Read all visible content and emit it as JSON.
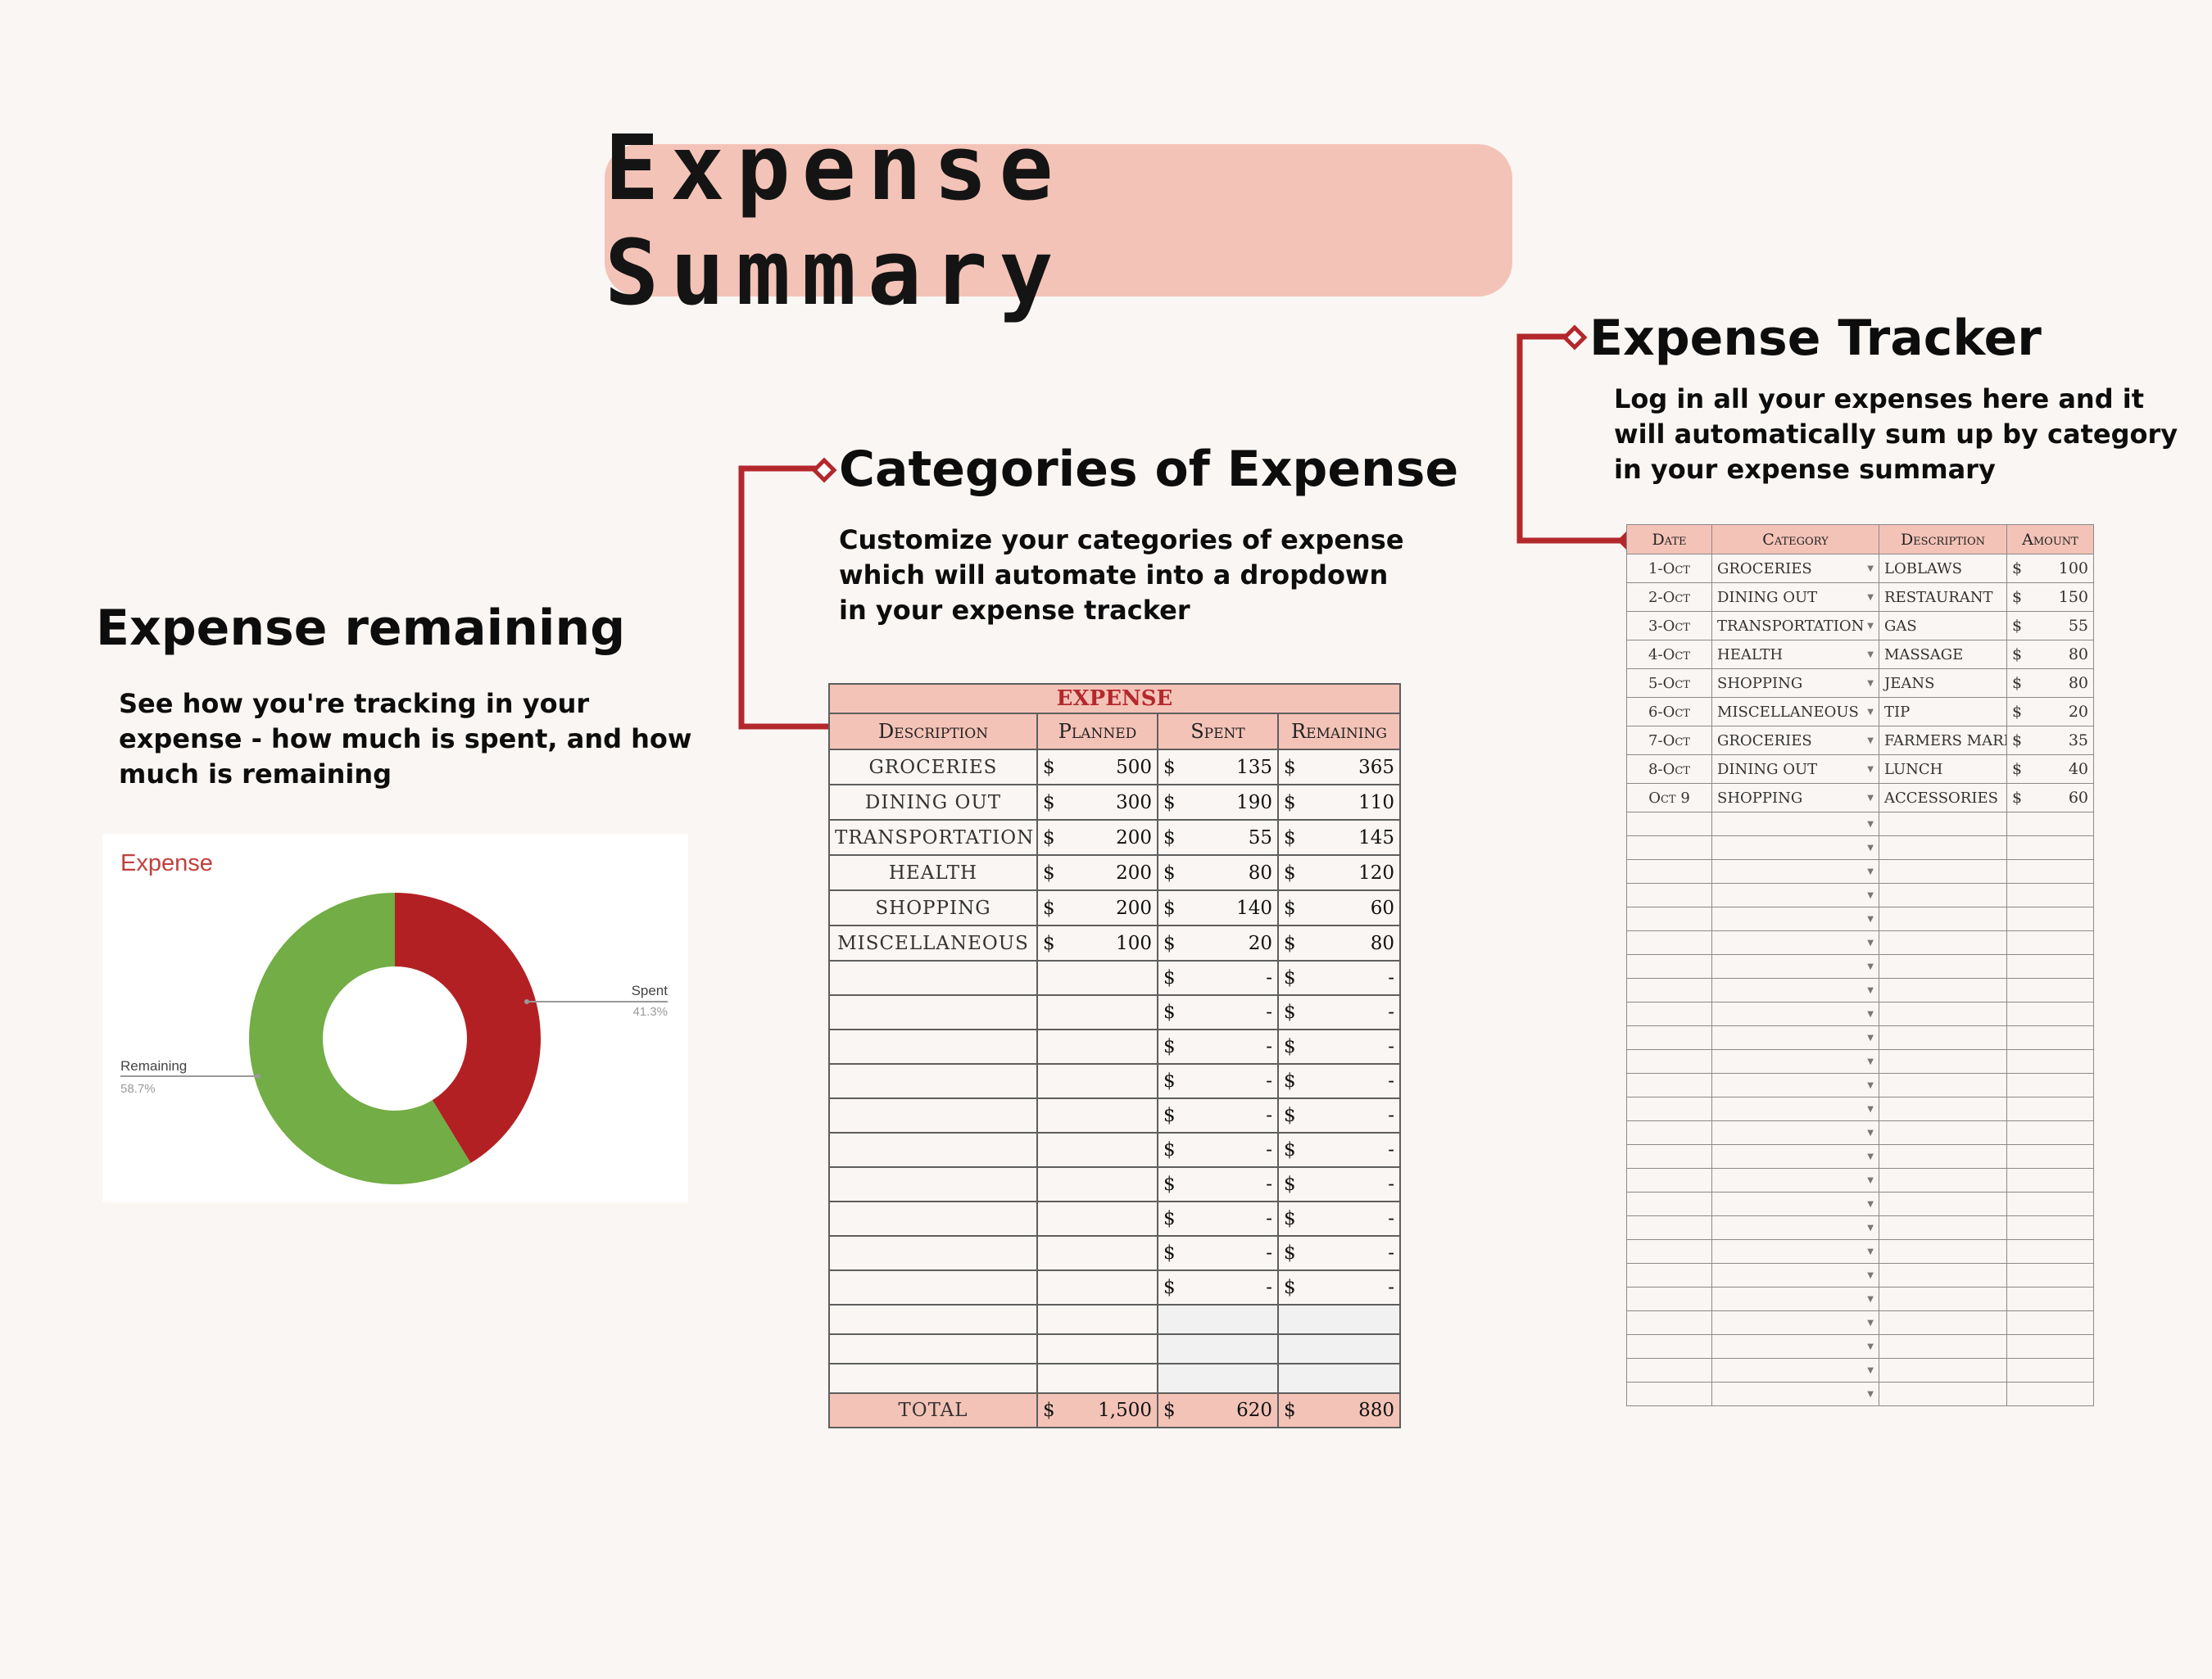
{
  "banner": {
    "title": "Expense Summary"
  },
  "sections": {
    "remaining": {
      "heading": "Expense remaining",
      "lines": [
        "See how you're tracking in your",
        "expense - how much is spent, and how",
        "much is remaining"
      ]
    },
    "categories": {
      "heading": "Categories of Expense",
      "lines": [
        "Customize your categories of expense",
        "which will automate into a dropdown",
        "in your expense tracker"
      ]
    },
    "tracker": {
      "heading": "Expense Tracker",
      "lines": [
        "Log in all your expenses here and it",
        "will automatically sum up by category",
        "in your expense summary"
      ]
    }
  },
  "donut": {
    "title": "Expense",
    "slices": [
      {
        "name": "Spent",
        "pct_label": "41.3%",
        "value": 41.3,
        "color": "#b32024"
      },
      {
        "name": "Remaining",
        "pct_label": "58.7%",
        "value": 58.7,
        "color": "#72ad45"
      }
    ]
  },
  "expense_table": {
    "caption": "EXPENSE",
    "headers": [
      "Description",
      "Planned",
      "Spent",
      "Remaining"
    ],
    "currency": "$",
    "dash": "-",
    "rows": [
      {
        "desc": "GROCERIES",
        "planned": "500",
        "spent": "135",
        "remaining": "365"
      },
      {
        "desc": "DINING OUT",
        "planned": "300",
        "spent": "190",
        "remaining": "110"
      },
      {
        "desc": "TRANSPORTATION",
        "planned": "200",
        "spent": "55",
        "remaining": "145"
      },
      {
        "desc": "HEALTH",
        "planned": "200",
        "spent": "80",
        "remaining": "120"
      },
      {
        "desc": "SHOPPING",
        "planned": "200",
        "spent": "140",
        "remaining": "60"
      },
      {
        "desc": "MISCELLANEOUS",
        "planned": "100",
        "spent": "20",
        "remaining": "80"
      }
    ],
    "total": {
      "label": "TOTAL",
      "planned": "1,500",
      "spent": "620",
      "remaining": "880"
    }
  },
  "tracker_table": {
    "headers": [
      "Date",
      "Category",
      "Description",
      "Amount"
    ],
    "currency": "$",
    "rows": [
      {
        "date": "1-Oct",
        "category": "GROCERIES",
        "description": "LOBLAWS",
        "amount": "100"
      },
      {
        "date": "2-Oct",
        "category": "DINING OUT",
        "description": "RESTAURANT",
        "amount": "150"
      },
      {
        "date": "3-Oct",
        "category": "TRANSPORTATION",
        "description": "GAS",
        "amount": "55"
      },
      {
        "date": "4-Oct",
        "category": "HEALTH",
        "description": "MASSAGE",
        "amount": "80"
      },
      {
        "date": "5-Oct",
        "category": "SHOPPING",
        "description": "JEANS",
        "amount": "80"
      },
      {
        "date": "6-Oct",
        "category": "MISCELLANEOUS",
        "description": "TIP",
        "amount": "20"
      },
      {
        "date": "7-Oct",
        "category": "GROCERIES",
        "description": "FARMERS MARKET",
        "amount": "35"
      },
      {
        "date": "8-Oct",
        "category": "DINING OUT",
        "description": "LUNCH",
        "amount": "40"
      },
      {
        "date": "Oct 9",
        "category": "SHOPPING",
        "description": "ACCESSORIES",
        "amount": "60"
      }
    ]
  },
  "colors": {
    "accent_red": "#b3282c",
    "peach": "#f4c3b7",
    "background": "#faf6f3"
  }
}
